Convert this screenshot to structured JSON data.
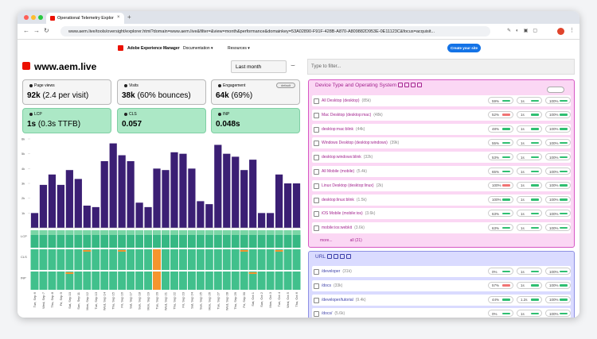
{
  "browser": {
    "tab_title": "Operational Telemetry Explor",
    "url": "www.aem.live/tools/oversight/explorer.html?domain=www.aem.live&filter=&view=month&performance&domainkey=53A02890-F91F-428B-A870-A809882D953E-0E11123C&focus=acquisit..."
  },
  "header": {
    "brand": "Adobe Experience Manager",
    "nav": [
      "Documentation",
      "Resources"
    ],
    "cta": "Create your site"
  },
  "dashboard": {
    "site": "www.aem.live",
    "period": "Last month",
    "filter_placeholder": "Type to filter...",
    "cards": [
      {
        "label": "Page views",
        "value": "92k",
        "detail": "(2.4 per visit)"
      },
      {
        "label": "Visits",
        "value": "38k",
        "detail": "(60% bounces)"
      },
      {
        "label": "Engagement",
        "value": "64k",
        "detail": "(69%)",
        "button": "default"
      },
      {
        "label": "LCP",
        "value": "1s",
        "detail": "(0.3s TTFB)"
      },
      {
        "label": "CLS",
        "value": "0.057"
      },
      {
        "label": "INP",
        "value": "0.048s"
      }
    ],
    "chart": {
      "type": "bar",
      "color": "#3b1f74",
      "categories": [
        "Tue, Sep 6",
        "Wed, Sep 7",
        "Thu, Sep 8",
        "Fri, Sep 9",
        "Sat, Sep 10",
        "Sun, Sep 11",
        "Mon, Sep 12",
        "Tue, Sep 13",
        "Wed, Sep 14",
        "Thu, Sep 15",
        "Fri, Sep 16",
        "Sat, Sep 17",
        "Sun, Sep 18",
        "Mon, Sep 19",
        "Tue, Sep 20",
        "Wed, Sep 21",
        "Thu, Sep 22",
        "Fri, Sep 23",
        "Sat, Sep 24",
        "Sun, Sep 25",
        "Mon, Sep 26",
        "Tue, Sep 27",
        "Wed, Sep 28",
        "Thu, Sep 29",
        "Fri, Sep 30",
        "Sat, Oct 1",
        "Sun, Oct 2",
        "Mon, Oct 3",
        "Tue, Oct 4",
        "Wed, Oct 5",
        "Thu, Oct 6"
      ],
      "values": [
        1000,
        2900,
        3600,
        2900,
        3900,
        3300,
        1500,
        1400,
        4500,
        5700,
        4900,
        4500,
        1700,
        1400,
        4000,
        3900,
        5100,
        5000,
        4000,
        1800,
        1600,
        5600,
        5000,
        4800,
        3900,
        4600,
        1000,
        1000,
        3600,
        3000,
        3000
      ],
      "ylim": [
        0,
        6000
      ],
      "yticks": [
        {
          "value": 1000,
          "label": "1k"
        },
        {
          "value": 2000,
          "label": "2k"
        },
        {
          "value": 3000,
          "label": "3k"
        },
        {
          "value": 4000,
          "label": "4k"
        },
        {
          "value": 5000,
          "label": "5k"
        },
        {
          "value": 6000,
          "label": "6k"
        }
      ],
      "lanes": [
        "LCP",
        "CLS",
        "INP"
      ]
    }
  },
  "facets": [
    {
      "title": "Device Type and Operating System",
      "rows": [
        {
          "label": "All Desktop (desktop)",
          "count": "(85k)",
          "metrics": [
            "59%",
            "1s",
            "100%"
          ]
        },
        {
          "label": "Mac Desktop (desktop:mac)",
          "count": "(48k)",
          "metrics": [
            "52%",
            "1s",
            "100%"
          ]
        },
        {
          "label": "desktop:mac:blink",
          "count": "(44k)",
          "metrics": [
            "48%",
            "1s",
            "100%"
          ]
        },
        {
          "label": "Windows Desktop (desktop:windows)",
          "count": "(39k)",
          "metrics": [
            "55%",
            "1s",
            "100%"
          ]
        },
        {
          "label": "desktop:windows:blink",
          "count": "(32k)",
          "metrics": [
            "53%",
            "1s",
            "100%"
          ]
        },
        {
          "label": "All Mobile (mobile)",
          "count": "(5.4k)",
          "metrics": [
            "65%",
            "1s",
            "100%"
          ]
        },
        {
          "label": "Linux Desktop (desktop:linux)",
          "count": "(2k)",
          "metrics": [
            "100%",
            "1s",
            "100%"
          ]
        },
        {
          "label": "desktop:linux:blink",
          "count": "(1.5k)",
          "metrics": [
            "100%",
            "1s",
            "100%"
          ]
        },
        {
          "label": "iOS Mobile (mobile:ios)",
          "count": "(3.6k)",
          "metrics": [
            "63%",
            "1s",
            "100%"
          ]
        },
        {
          "label": "mobile:ios:webkit",
          "count": "(3.6k)",
          "metrics": [
            "63%",
            "1s",
            "100%"
          ]
        }
      ],
      "more": "more...",
      "all": "all (21)"
    },
    {
      "title": "URL",
      "rows": [
        {
          "label": "/developer",
          "count": "(31k)",
          "metrics": [
            "0%",
            "1s",
            "100%"
          ]
        },
        {
          "label": "/docs",
          "count": "(33k)",
          "metrics": [
            "57%",
            "1s",
            "100%"
          ]
        },
        {
          "label": "/developer/tutorial",
          "count": "(9.4k)",
          "metrics": [
            "44%",
            "1.2s",
            "100%"
          ]
        },
        {
          "label": "/docs/",
          "count": "(5.6k)",
          "metrics": [
            "0%",
            "1s",
            "100%"
          ]
        }
      ]
    }
  ]
}
